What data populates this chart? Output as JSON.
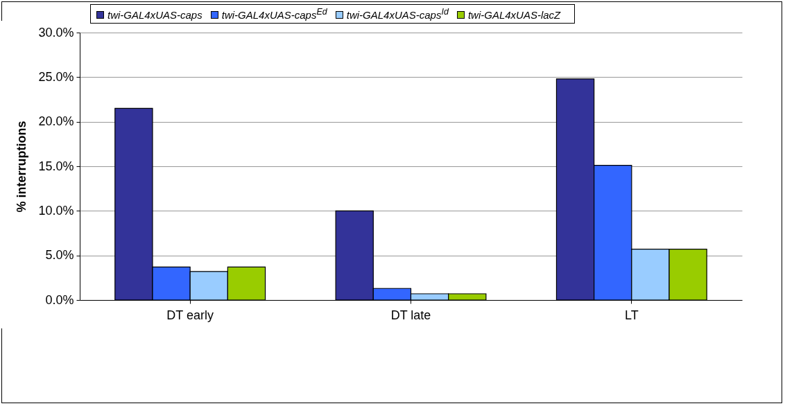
{
  "chart_data": {
    "type": "bar",
    "ylabel": "% interruptions",
    "categories": [
      "DT early",
      "DT late",
      "LT"
    ],
    "series": [
      {
        "name": "twi-GAL4xUAS-caps",
        "color": "#333399",
        "values": [
          21.5,
          10.0,
          24.8
        ]
      },
      {
        "name": "twi-GAL4xUAS-caps$^{Ed}$",
        "color": "#3366ff",
        "values": [
          3.7,
          1.3,
          15.1
        ]
      },
      {
        "name": "twi-GAL4xUAS-caps$^{Id}$",
        "color": "#99ccff",
        "values": [
          3.2,
          0.7,
          5.7
        ]
      },
      {
        "name": "twi-GAL4xUAS-lacZ",
        "color": "#99cc00",
        "values": [
          3.7,
          0.7,
          5.7
        ]
      }
    ],
    "ylim": [
      0,
      30
    ],
    "yticks": [
      {
        "value": 0,
        "label": "0.0%"
      },
      {
        "value": 5,
        "label": "5.0%"
      },
      {
        "value": 10,
        "label": "10.0%"
      },
      {
        "value": 15,
        "label": "15.0%"
      },
      {
        "value": 20,
        "label": "20.0%"
      },
      {
        "value": 25,
        "label": "25.0%"
      },
      {
        "value": 30,
        "label": "30.0%"
      }
    ],
    "grid": "y",
    "legend": "top"
  }
}
